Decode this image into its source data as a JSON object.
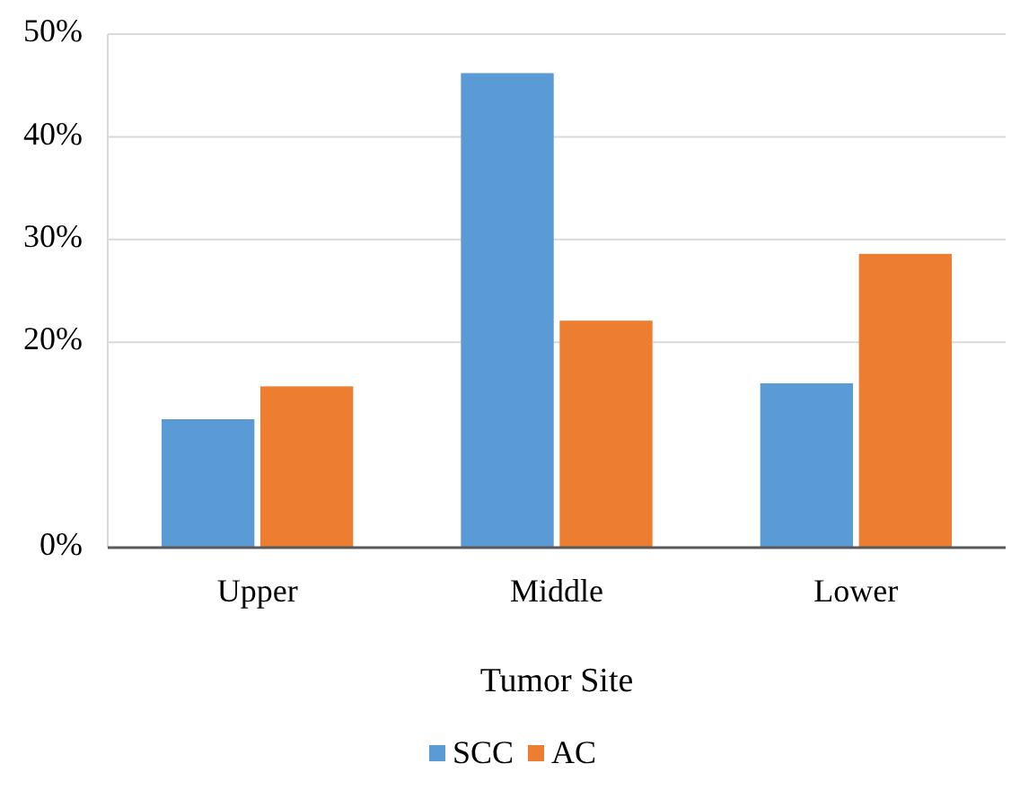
{
  "chart_data": {
    "type": "bar",
    "xlabel": "Tumor Site",
    "categories": [
      "Upper",
      "Middle",
      "Lower"
    ],
    "series": [
      {
        "name": "SCC",
        "color": "#5b9bd5",
        "values": [
          12.5,
          46.2,
          16.0
        ]
      },
      {
        "name": "AC",
        "color": "#ed7d31",
        "values": [
          15.7,
          22.1,
          28.6
        ]
      }
    ],
    "ylim": [
      0,
      50
    ],
    "yticks": [
      {
        "value": 0,
        "label": "0%"
      },
      {
        "value": 20,
        "label": "20%"
      },
      {
        "value": 30,
        "label": "30%"
      },
      {
        "value": 40,
        "label": "40%"
      },
      {
        "value": 50,
        "label": "50%"
      }
    ],
    "grid": "y",
    "legend": "bottom"
  }
}
